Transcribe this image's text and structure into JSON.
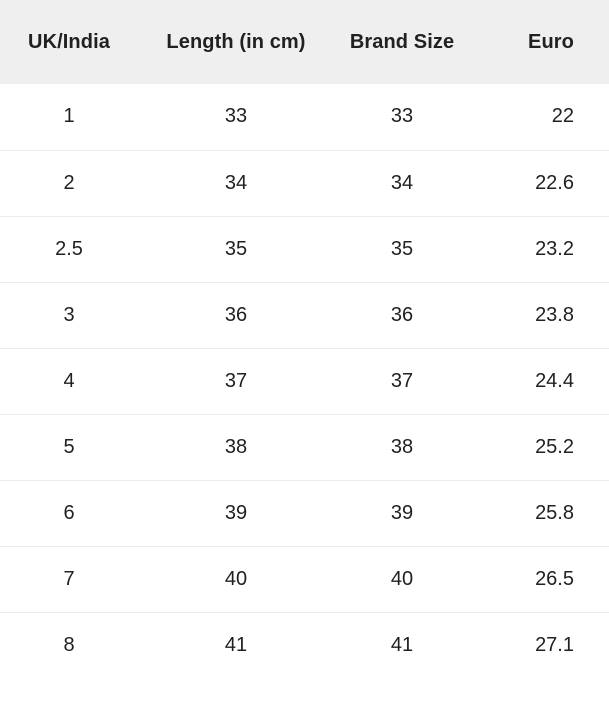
{
  "colors": {
    "header_bg": "#efefef",
    "text": "#212121",
    "divider": "#ebebeb",
    "page_bg": "#ffffff"
  },
  "size_chart": {
    "columns": [
      "UK/India",
      "Length (in cm)",
      "Brand Size",
      "Euro"
    ],
    "rows": [
      [
        "1",
        "33",
        "33",
        "22"
      ],
      [
        "2",
        "34",
        "34",
        "22.6"
      ],
      [
        "2.5",
        "35",
        "35",
        "23.2"
      ],
      [
        "3",
        "36",
        "36",
        "23.8"
      ],
      [
        "4",
        "37",
        "37",
        "24.4"
      ],
      [
        "5",
        "38",
        "38",
        "25.2"
      ],
      [
        "6",
        "39",
        "39",
        "25.8"
      ],
      [
        "7",
        "40",
        "40",
        "26.5"
      ],
      [
        "8",
        "41",
        "41",
        "27.1"
      ]
    ]
  }
}
